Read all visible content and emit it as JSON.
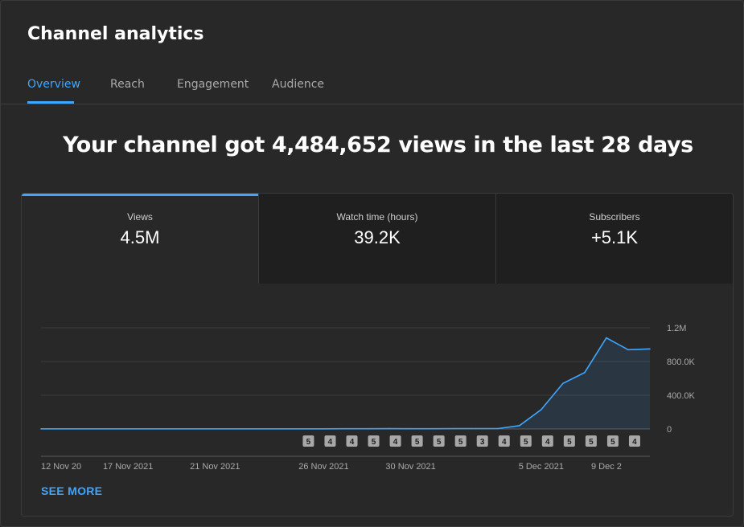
{
  "page": {
    "title": "Channel analytics"
  },
  "tabs": [
    {
      "label": "Overview",
      "active": true
    },
    {
      "label": "Reach",
      "active": false
    },
    {
      "label": "Engagement",
      "active": false
    },
    {
      "label": "Audience",
      "active": false
    }
  ],
  "headline": "Your channel got 4,484,652 views in the last 28 days",
  "metrics": [
    {
      "label": "Views",
      "value": "4.5M"
    },
    {
      "label": "Watch time (hours)",
      "value": "39.2K"
    },
    {
      "label": "Subscribers",
      "value": "+5.1K"
    }
  ],
  "see_more_label": "SEE MORE",
  "colors": {
    "accent": "#3ea6ff",
    "line": "#3ea6ff",
    "background": "#282828",
    "inactive_metric": "#1f1f1f"
  },
  "chart_data": {
    "type": "area",
    "series": [
      {
        "values": [
          2000,
          2000,
          2000,
          2000,
          2000,
          2000,
          2000,
          2000,
          2000,
          2000,
          2000,
          2000,
          2000,
          2000,
          3000,
          3000,
          4000,
          3000,
          3000,
          5000,
          5000,
          5000,
          40000,
          230000,
          540000,
          670000,
          1080000,
          940000,
          950000
        ]
      }
    ],
    "ylim": [
      0,
      1200000
    ],
    "yticks": [
      {
        "value": 0,
        "label": "0"
      },
      {
        "value": 400000,
        "label": "400.0K"
      },
      {
        "value": 800000,
        "label": "800.0K"
      },
      {
        "value": 1200000,
        "label": "1.2M"
      }
    ],
    "xticks": [
      {
        "index": 0,
        "label": "12 Nov 20"
      },
      {
        "index": 4,
        "label": "17 Nov 2021"
      },
      {
        "index": 8,
        "label": "21 Nov 2021"
      },
      {
        "index": 13,
        "label": "26 Nov 2021"
      },
      {
        "index": 17,
        "label": "30 Nov 2021"
      },
      {
        "index": 23,
        "label": "5 Dec 2021"
      },
      {
        "index": 26,
        "label": "9 Dec 2"
      }
    ],
    "markers": [
      {
        "index": 12,
        "label": "5"
      },
      {
        "index": 13,
        "label": "4"
      },
      {
        "index": 14,
        "label": "4"
      },
      {
        "index": 15,
        "label": "5"
      },
      {
        "index": 16,
        "label": "4"
      },
      {
        "index": 17,
        "label": "5"
      },
      {
        "index": 18,
        "label": "5"
      },
      {
        "index": 19,
        "label": "5"
      },
      {
        "index": 20,
        "label": "3"
      },
      {
        "index": 21,
        "label": "4"
      },
      {
        "index": 22,
        "label": "5"
      },
      {
        "index": 23,
        "label": "4"
      },
      {
        "index": 24,
        "label": "5"
      },
      {
        "index": 25,
        "label": "5"
      },
      {
        "index": 26,
        "label": "5"
      },
      {
        "index": 27,
        "label": "4"
      }
    ],
    "grid": true
  }
}
